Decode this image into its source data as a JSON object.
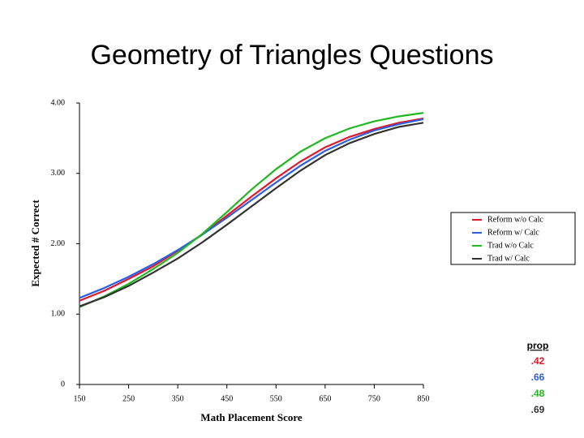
{
  "chart_data": {
    "type": "line",
    "title": "Geometry of Triangles Questions",
    "x_label": "Math Placement Score",
    "y_label": "Expected # Correct",
    "x": [
      150,
      200,
      250,
      300,
      350,
      400,
      450,
      500,
      550,
      600,
      650,
      700,
      750,
      800,
      850
    ],
    "series": [
      {
        "name": "Reform w/o Calc",
        "color": "#e0182b",
        "values": [
          1.19,
          1.33,
          1.5,
          1.68,
          1.9,
          2.13,
          2.4,
          2.67,
          2.93,
          3.17,
          3.37,
          3.52,
          3.63,
          3.72,
          3.78
        ]
      },
      {
        "name": "Reform w/ Calc",
        "color": "#2b5de8",
        "values": [
          1.23,
          1.37,
          1.53,
          1.71,
          1.91,
          2.13,
          2.37,
          2.62,
          2.87,
          3.11,
          3.32,
          3.48,
          3.61,
          3.7,
          3.77
        ]
      },
      {
        "name": "Trad w/o Calc",
        "color": "#1fb81f",
        "values": [
          1.1,
          1.25,
          1.43,
          1.64,
          1.87,
          2.14,
          2.45,
          2.77,
          3.06,
          3.31,
          3.5,
          3.64,
          3.74,
          3.81,
          3.86
        ]
      },
      {
        "name": "Trad w/ Calc",
        "color": "#333333",
        "values": [
          1.11,
          1.24,
          1.4,
          1.59,
          1.79,
          2.02,
          2.27,
          2.53,
          2.79,
          3.04,
          3.26,
          3.43,
          3.56,
          3.66,
          3.72
        ]
      }
    ],
    "xlim": [
      150,
      850
    ],
    "xticks": [
      150,
      250,
      350,
      450,
      550,
      650,
      750,
      850
    ],
    "ylim": [
      0,
      4
    ],
    "yticks": [
      0,
      {
        "value": 1,
        "label": "1.00"
      },
      {
        "value": 2,
        "label": "2.00"
      },
      {
        "value": 3,
        "label": "3.00"
      },
      {
        "value": 4,
        "label": "4.00"
      }
    ],
    "grid": false,
    "legend": "right",
    "prop_header": "prop",
    "prop_labels": [
      ".42",
      ".66",
      ".48",
      ".69"
    ]
  }
}
